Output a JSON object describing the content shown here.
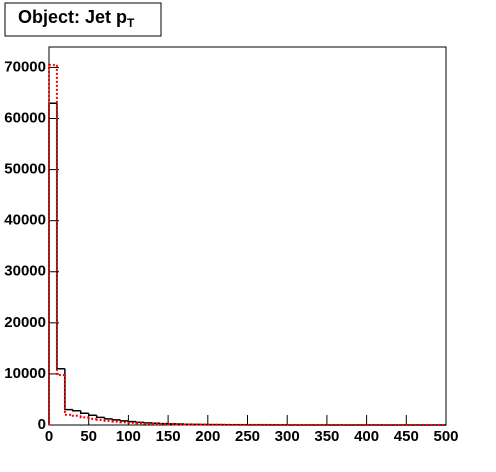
{
  "chart_data": {
    "type": "histogram",
    "title": "Object: Jet p",
    "title_subscript": "T",
    "bins": [
      0,
      10,
      20,
      30,
      40,
      50,
      60,
      70,
      80,
      90,
      100,
      110,
      120,
      130,
      140,
      150,
      160,
      170,
      180,
      190,
      200,
      210,
      220,
      230,
      240,
      250,
      260,
      270,
      280,
      290,
      300,
      310,
      320,
      330,
      340,
      350,
      360,
      370,
      380,
      390,
      400,
      410,
      420,
      430,
      440,
      450,
      460,
      470,
      480,
      490,
      500
    ],
    "series": [
      {
        "color": "#000000",
        "style": "solid",
        "values": [
          63000,
          11000,
          3000,
          2800,
          2300,
          1900,
          1500,
          1200,
          1000,
          800,
          650,
          520,
          420,
          340,
          280,
          230,
          190,
          150,
          120,
          100,
          85,
          70,
          58,
          48,
          40,
          33,
          27,
          22,
          18,
          15,
          12,
          10,
          8,
          7,
          6,
          5,
          4,
          3,
          3,
          2,
          2,
          2,
          1,
          1,
          1,
          1,
          1,
          0,
          0,
          0
        ]
      },
      {
        "color": "#ff0000",
        "style": "dotted",
        "values": [
          70500,
          9800,
          2000,
          1800,
          1500,
          1200,
          1000,
          800,
          650,
          520,
          420,
          340,
          280,
          230,
          190,
          150,
          120,
          100,
          85,
          70,
          58,
          48,
          40,
          33,
          27,
          22,
          18,
          15,
          12,
          10,
          8,
          7,
          6,
          5,
          4,
          3,
          3,
          2,
          2,
          2,
          1,
          1,
          1,
          1,
          1,
          0,
          0,
          0,
          0,
          0
        ]
      }
    ],
    "xlim": [
      0,
      500
    ],
    "xticks": [
      0,
      50,
      100,
      150,
      200,
      250,
      300,
      350,
      400,
      450,
      500
    ],
    "ylim": [
      0,
      74000
    ],
    "yticks": [
      0,
      10000,
      20000,
      30000,
      40000,
      50000,
      60000,
      70000
    ],
    "grid": false
  }
}
